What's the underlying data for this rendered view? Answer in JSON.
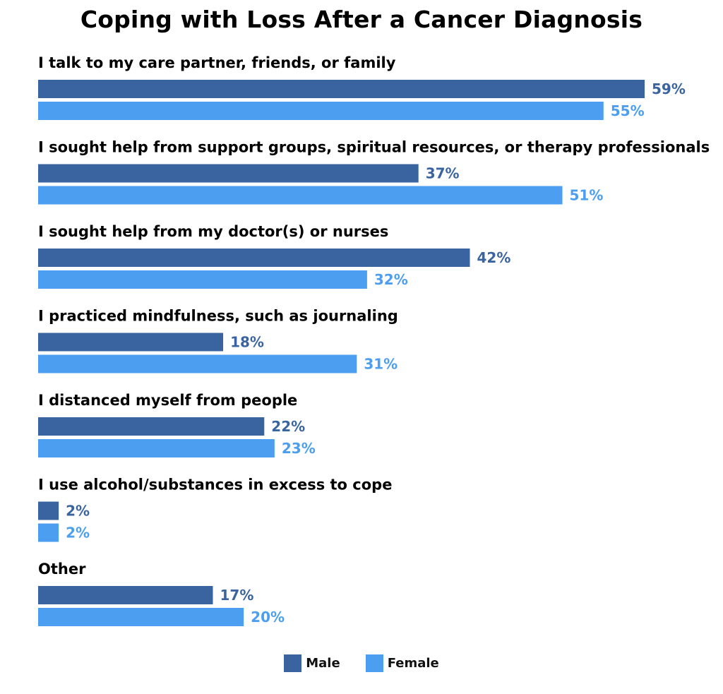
{
  "colors": {
    "male": "#3a64a0",
    "female": "#4b9ef0"
  },
  "chart_data": {
    "type": "bar",
    "orientation": "horizontal",
    "title": "Coping with Loss After a Cancer Diagnosis",
    "categories": [
      "I talk to my care partner, friends, or family",
      "I sought help from support groups, spiritual resources, or therapy professionals",
      "I sought help from my doctor(s) or nurses",
      "I practiced mindfulness, such as journaling",
      "I distanced myself from people",
      "I use alcohol/substances in excess to cope",
      "Other"
    ],
    "series": [
      {
        "name": "Male",
        "values": [
          59,
          37,
          42,
          18,
          22,
          2,
          17
        ],
        "labels": [
          "59%",
          "37%",
          "42%",
          "18%",
          "22%",
          "2%",
          "17%"
        ]
      },
      {
        "name": "Female",
        "values": [
          55,
          51,
          32,
          31,
          23,
          2,
          20
        ],
        "labels": [
          "55%",
          "51%",
          "32%",
          "31%",
          "23%",
          "2%",
          "20%"
        ]
      }
    ],
    "xlim": [
      0,
      100
    ],
    "grid": false,
    "legend_position": "bottom-center"
  }
}
